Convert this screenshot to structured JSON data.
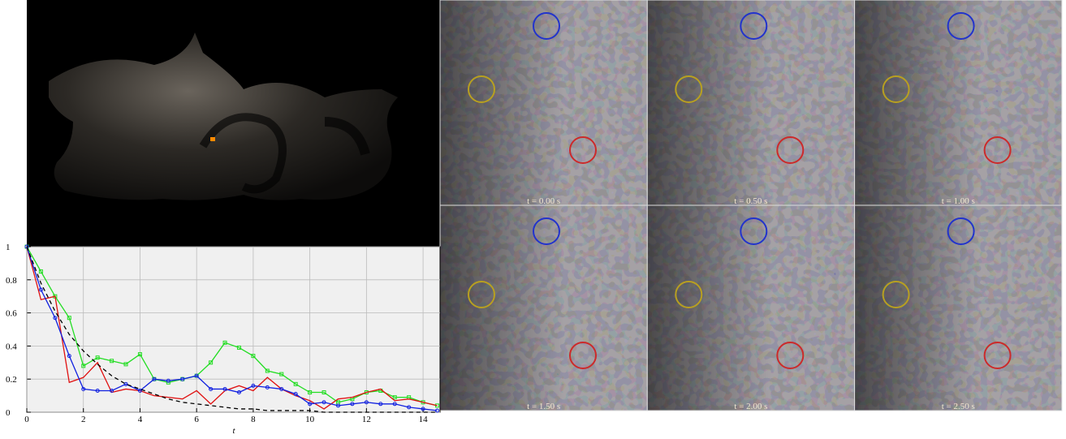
{
  "chart_data": {
    "type": "line",
    "xlabel": "t",
    "x": [
      0,
      0.5,
      1,
      1.5,
      2,
      2.5,
      3,
      3.5,
      4,
      4.5,
      5,
      5.5,
      6,
      6.5,
      7,
      7.5,
      8,
      8.5,
      9,
      9.5,
      10,
      10.5,
      11,
      11.5,
      12,
      12.5,
      13,
      13.5,
      14,
      14.5
    ],
    "series": [
      {
        "color": "#22dd22",
        "marker": "square",
        "values": [
          1,
          0.85,
          0.7,
          0.57,
          0.28,
          0.33,
          0.31,
          0.29,
          0.35,
          0.2,
          0.18,
          0.2,
          0.22,
          0.3,
          0.42,
          0.39,
          0.34,
          0.25,
          0.23,
          0.17,
          0.12,
          0.12,
          0.06,
          0.08,
          0.12,
          0.13,
          0.09,
          0.09,
          0.06,
          0.04
        ]
      },
      {
        "color": "#e01010",
        "marker": "none",
        "values": [
          1,
          0.68,
          0.7,
          0.18,
          0.21,
          0.3,
          0.12,
          0.14,
          0.13,
          0.1,
          0.09,
          0.08,
          0.13,
          0.05,
          0.13,
          0.16,
          0.13,
          0.21,
          0.14,
          0.1,
          0.07,
          0.02,
          0.08,
          0.09,
          0.12,
          0.14,
          0.07,
          0.08,
          0.06,
          0.04
        ]
      },
      {
        "color": "#1020e0",
        "marker": "circle",
        "values": [
          1,
          0.74,
          0.57,
          0.34,
          0.14,
          0.13,
          0.13,
          0.17,
          0.13,
          0.2,
          0.19,
          0.2,
          0.22,
          0.14,
          0.14,
          0.12,
          0.16,
          0.15,
          0.14,
          0.11,
          0.05,
          0.06,
          0.04,
          0.05,
          0.06,
          0.05,
          0.05,
          0.03,
          0.02,
          0.01
        ]
      },
      {
        "color": "#000000",
        "marker": "none",
        "style": "dashed",
        "values": [
          1,
          0.78,
          0.61,
          0.47,
          0.37,
          0.29,
          0.22,
          0.17,
          0.14,
          0.11,
          0.08,
          0.06,
          0.05,
          0.04,
          0.03,
          0.02,
          0.02,
          0.01,
          0.01,
          0.01,
          0.01,
          0,
          0,
          0,
          0,
          0,
          0,
          0,
          0,
          0
        ]
      }
    ],
    "xlim": [
      0,
      14.6
    ],
    "xticks": [
      0,
      2,
      4,
      6,
      8,
      10,
      12,
      14
    ],
    "ylim": [
      0,
      1
    ],
    "yticks": [
      0,
      0.2,
      0.4,
      0.6,
      0.8,
      1
    ],
    "grid": true
  },
  "panels": [
    {
      "label": "t = 0.00 s"
    },
    {
      "label": "t = 0.50 s"
    },
    {
      "label": "t = 1.00 s"
    },
    {
      "label": "t = 1.50 s"
    },
    {
      "label": "t = 2.00 s"
    },
    {
      "label": "t = 2.50 s"
    }
  ]
}
